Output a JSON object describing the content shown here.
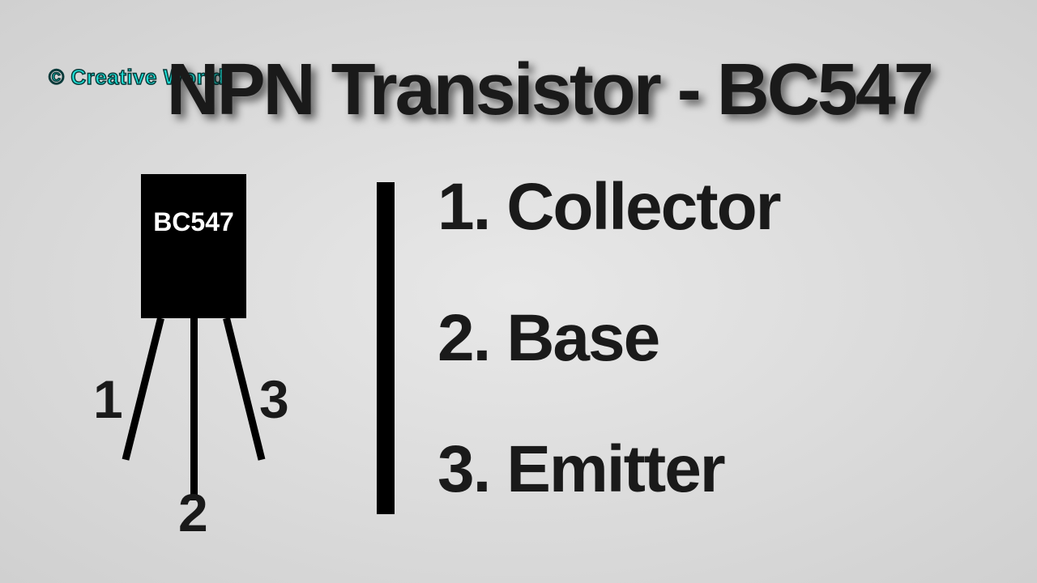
{
  "watermark": "© Creative World",
  "title": "NPN Transistor - BC547",
  "transistor": {
    "body_label": "BC547",
    "body_color": "#000000",
    "text_color": "#ffffff",
    "leg_count": 3,
    "leg_labels": {
      "p1": "1",
      "p2": "2",
      "p3": "3"
    }
  },
  "pins": [
    {
      "num": "1.",
      "name": "Collector"
    },
    {
      "num": "2.",
      "name": "Base"
    },
    {
      "num": "3.",
      "name": "Emitter"
    }
  ],
  "style": {
    "title_fontsize": 90,
    "title_color": "#1a1a1a",
    "title_shadow": "6px 6px 10px rgba(0,0,0,0.55)",
    "watermark_color": "#1de0d6",
    "watermark_stroke": "#0a3a3a",
    "watermark_fontsize": 26,
    "background_gradient": [
      "#e8e8e8",
      "#d0d0d0"
    ],
    "divider_color": "#000000",
    "divider_width": 22,
    "pin_label_fontsize": 66,
    "list_fontsize": 82,
    "text_color": "#1a1a1a"
  }
}
